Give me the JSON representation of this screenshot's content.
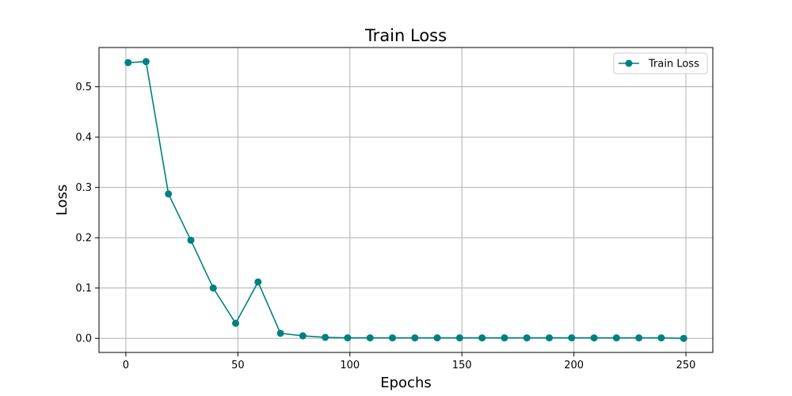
{
  "chart_data": {
    "type": "line",
    "title": "Train Loss",
    "xlabel": "Epochs",
    "ylabel": "Loss",
    "xlim": [
      -12,
      262
    ],
    "ylim": [
      -0.028,
      0.578
    ],
    "xticks": [
      0,
      50,
      100,
      150,
      200,
      250
    ],
    "yticks": [
      0.0,
      0.1,
      0.2,
      0.3,
      0.4,
      0.5
    ],
    "xtick_labels": [
      "0",
      "50",
      "100",
      "150",
      "200",
      "250"
    ],
    "ytick_labels": [
      "0.0",
      "0.1",
      "0.2",
      "0.3",
      "0.4",
      "0.5"
    ],
    "grid": true,
    "legend": {
      "placement": "top-right"
    },
    "series": [
      {
        "name": "Train Loss",
        "color": "#008080",
        "marker": "circle",
        "x": [
          1,
          9,
          19,
          29,
          39,
          49,
          59,
          69,
          79,
          89,
          99,
          109,
          119,
          129,
          139,
          149,
          159,
          169,
          179,
          189,
          199,
          209,
          219,
          229,
          239,
          249
        ],
        "y": [
          0.548,
          0.55,
          0.287,
          0.195,
          0.1,
          0.03,
          0.112,
          0.01,
          0.005,
          0.002,
          0.001,
          0.001,
          0.001,
          0.001,
          0.001,
          0.001,
          0.001,
          0.001,
          0.001,
          0.001,
          0.001,
          0.001,
          0.001,
          0.001,
          0.001,
          0.0
        ]
      }
    ]
  }
}
